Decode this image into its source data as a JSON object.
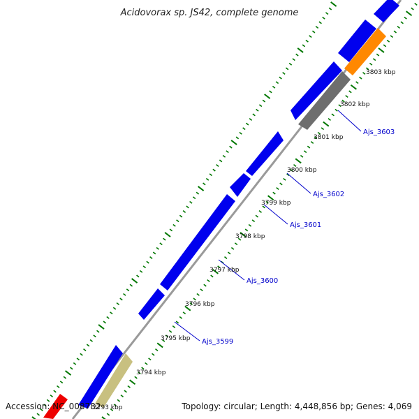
{
  "map": {
    "title": "Acidovorax sp. JS42, complete genome",
    "accession_text": "Accession: NC_008782",
    "topology_text": "Topology: circular; Length: 4,448,856 bp; Genes: 4,069",
    "colors": {
      "cds": "#0000ee",
      "gray_feature": "#6e6e6e",
      "orange_feature": "#ff8800",
      "khaki_feature": "#c8c080",
      "red_feature": "#ee0000",
      "backbone": "#9a9a9a",
      "ticks": "#007700",
      "gene_label": "#0000cc"
    },
    "scale_labels": [
      "3793 kbp",
      "3794 kbp",
      "3795 kbp",
      "3796 kbp",
      "3797 kbp",
      "3798 kbp",
      "3799 kbp",
      "3800 kbp",
      "3801 kbp",
      "3802 kbp",
      "3803 kbp"
    ],
    "gene_labels": [
      "Ajs_3599",
      "Ajs_3600",
      "Ajs_3601",
      "Ajs_3602",
      "Ajs_3603"
    ]
  }
}
